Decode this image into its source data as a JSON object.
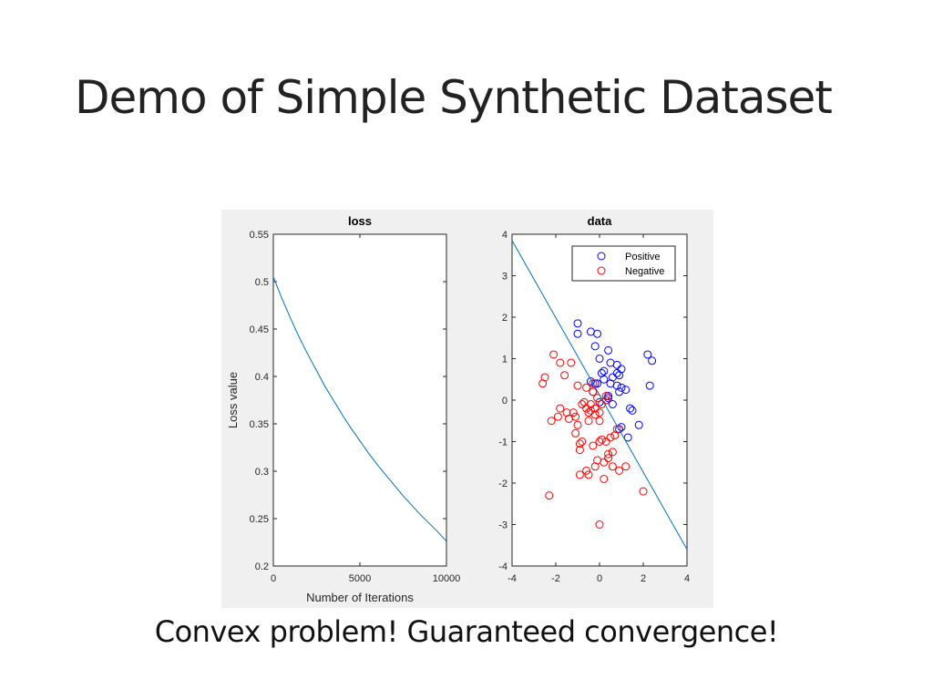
{
  "slide": {
    "title": "Demo of Simple Synthetic Dataset",
    "caption": "Convex problem! Guaranteed convergence!"
  },
  "chart_data": [
    {
      "type": "line",
      "title": "loss",
      "xlabel": "Number of Iterations",
      "ylabel": "Loss value",
      "xlim": [
        0,
        10000
      ],
      "ylim": [
        0.2,
        0.55
      ],
      "xticks": [
        0,
        5000,
        10000
      ],
      "xtick_labels": [
        "0",
        "5000",
        "10000"
      ],
      "yticks": [
        0.2,
        0.25,
        0.3,
        0.35,
        0.4,
        0.45,
        0.5,
        0.55
      ],
      "ytick_labels": [
        "0.2",
        "0.25",
        "0.3",
        "0.35",
        "0.4",
        "0.45",
        "0.5",
        "0.55"
      ],
      "grid": false,
      "color": "#0072bd",
      "series": [
        {
          "x": [
            0,
            500,
            1000,
            1500,
            2000,
            2500,
            3000,
            3500,
            4000,
            4500,
            5000,
            5500,
            6000,
            6500,
            7000,
            7500,
            8000,
            8500,
            9000,
            9500,
            10000
          ],
          "values": [
            0.505,
            0.482,
            0.461,
            0.441,
            0.423,
            0.406,
            0.389,
            0.374,
            0.359,
            0.345,
            0.332,
            0.319,
            0.307,
            0.296,
            0.285,
            0.274,
            0.264,
            0.254,
            0.245,
            0.236,
            0.226
          ]
        }
      ]
    },
    {
      "type": "scatter",
      "title": "data",
      "xlim": [
        -4,
        4
      ],
      "ylim": [
        -4,
        4
      ],
      "xticks": [
        -4,
        -2,
        0,
        2,
        4
      ],
      "xtick_labels": [
        "-4",
        "-2",
        "0",
        "2",
        "4"
      ],
      "yticks": [
        -4,
        -3,
        -2,
        -1,
        0,
        1,
        2,
        3,
        4
      ],
      "ytick_labels": [
        "-4",
        "-3",
        "-2",
        "-1",
        "0",
        "1",
        "2",
        "3",
        "4"
      ],
      "grid": false,
      "legend_position": "top-right",
      "series": [
        {
          "name": "Positive",
          "color": "#0000ff",
          "x": [
            -1,
            -0.4,
            -0.1,
            -1,
            -0.2,
            0,
            0.4,
            0.8,
            1,
            0.2,
            0.9,
            0.6,
            -0.4,
            -0.1,
            0.5,
            0.8,
            1,
            1.2,
            0.4,
            0.3,
            0,
            0.6,
            1.4,
            1.5,
            1.8,
            2.2,
            2.3,
            2.4,
            -0.2,
            0.1,
            0.2,
            1,
            0.9,
            1.3,
            0.8,
            0.5,
            0.4,
            0.9,
            -0.3
          ],
          "values": [
            1.85,
            1.65,
            1.6,
            1.6,
            1.3,
            1,
            1.2,
            0.85,
            0.75,
            0.7,
            0.6,
            0.55,
            0.45,
            0.4,
            0.4,
            0.35,
            0.3,
            0.25,
            0.1,
            0,
            -0.05,
            -0.1,
            -0.2,
            -0.25,
            -0.6,
            1.1,
            0.35,
            0.95,
            0.4,
            0.65,
            0.5,
            -0.65,
            -0.7,
            -0.9,
            0.65,
            0.9,
            0.05,
            0.2,
            0.2
          ]
        },
        {
          "name": "Negative",
          "color": "#ff0000",
          "x": [
            -2.1,
            -1.8,
            -1.3,
            -1.6,
            -2.5,
            -2.6,
            -1.0,
            -0.6,
            -0.3,
            -1.8,
            -1.9,
            -1.2,
            -0.8,
            -0.6,
            -0.4,
            -0.2,
            0.1,
            -1.0,
            -0.5,
            0,
            -1.1,
            -0.9,
            -0.3,
            0,
            0.5,
            0.3,
            0.2,
            -0.2,
            -0.6,
            0.2,
            0.6,
            -0.5,
            -0.9,
            0.4,
            0.9,
            1.2,
            -0.8,
            0,
            0.4,
            0.1,
            -0.2,
            -2.3,
            0,
            2,
            -0.3,
            0.3,
            -1.1,
            -1.4,
            -1.5,
            0.8,
            -2.2,
            -0.5,
            -0.7,
            -0.1,
            0.3,
            -0.4,
            0.6,
            -0.9,
            -0.1,
            0.7
          ],
          "values": [
            1.1,
            0.9,
            0.9,
            0.6,
            0.55,
            0.4,
            0.35,
            0.3,
            0.4,
            -0.2,
            -0.4,
            -0.3,
            -0.1,
            -0.2,
            -0.1,
            -0.2,
            -0.1,
            -0.6,
            -0.5,
            -0.5,
            -0.8,
            -1.2,
            -1.1,
            -1.0,
            -0.9,
            -1.0,
            -1.5,
            -1.6,
            -1.7,
            -1.9,
            -1.6,
            -1.8,
            -1.8,
            -1.3,
            -1.7,
            -1.6,
            -1.0,
            -3.0,
            -1.4,
            -0.95,
            -0.35,
            -2.3,
            -0.3,
            -2.2,
            0.2,
            0.1,
            -0.4,
            -0.45,
            -0.3,
            -0.7,
            -0.5,
            -0.3,
            -0.05,
            0.05,
            0.0,
            -0.25,
            -1.25,
            -1.05,
            -1.45,
            -0.85
          ]
        },
        {
          "type": "line",
          "color": "#0072bd",
          "x": [
            -4,
            4
          ],
          "values": [
            3.85,
            -3.6
          ]
        }
      ]
    }
  ]
}
